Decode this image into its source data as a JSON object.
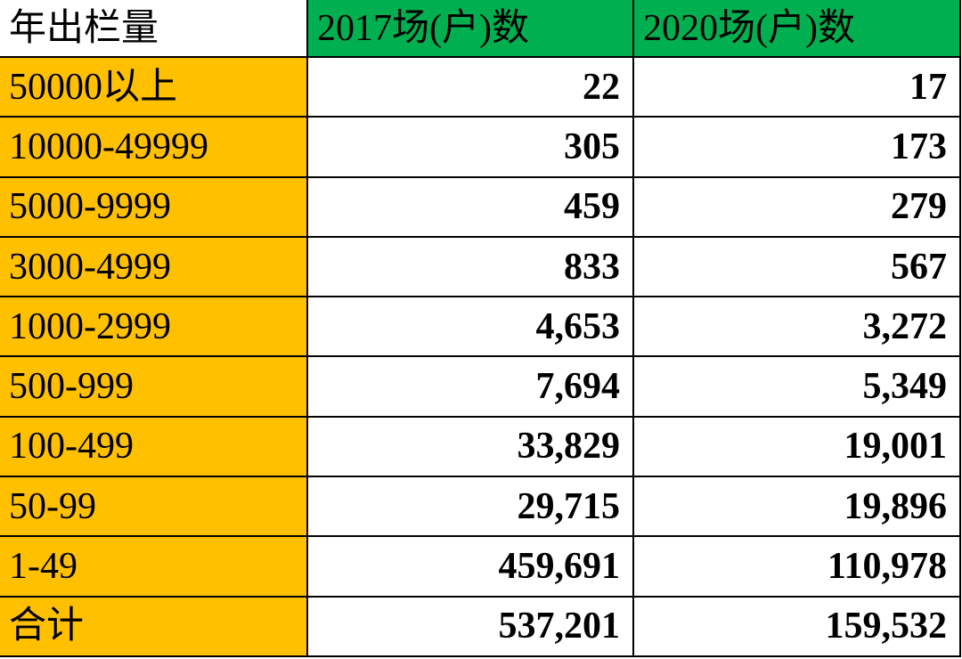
{
  "colors": {
    "header_green": "#00B050",
    "label_orange": "#FFC000"
  },
  "table": {
    "header": {
      "label": "年出栏量",
      "col_2017": "2017场(户)数",
      "col_2020": "2020场(户)数"
    },
    "rows": [
      {
        "label": "50000以上",
        "v2017": "22",
        "v2020": "17"
      },
      {
        "label": "10000-49999",
        "v2017": "305",
        "v2020": "173"
      },
      {
        "label": "5000-9999",
        "v2017": "459",
        "v2020": "279"
      },
      {
        "label": "3000-4999",
        "v2017": "833",
        "v2020": "567"
      },
      {
        "label": "1000-2999",
        "v2017": "4,653",
        "v2020": "3,272"
      },
      {
        "label": "500-999",
        "v2017": "7,694",
        "v2020": "5,349"
      },
      {
        "label": "100-499",
        "v2017": "33,829",
        "v2020": "19,001"
      },
      {
        "label": "50-99",
        "v2017": "29,715",
        "v2020": "19,896"
      },
      {
        "label": "1-49",
        "v2017": "459,691",
        "v2020": "110,978"
      },
      {
        "label": "合计",
        "v2017": "537,201",
        "v2020": "159,532"
      }
    ]
  }
}
